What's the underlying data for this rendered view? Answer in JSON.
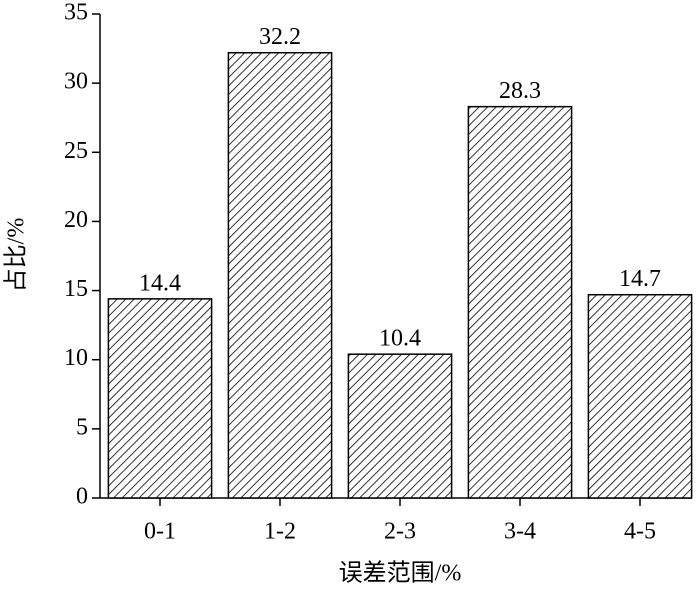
{
  "chart_data": {
    "type": "bar",
    "x_label": "误差范围/%",
    "y_label": "占比/%",
    "categories": [
      "0-1",
      "1-2",
      "2-3",
      "3-4",
      "4-5"
    ],
    "values": [
      14.4,
      32.2,
      10.4,
      28.3,
      14.7
    ],
    "color": "#000000",
    "ylim": [
      0,
      35
    ],
    "yticks": [
      0,
      5,
      10,
      15,
      20,
      25,
      30,
      35
    ]
  }
}
